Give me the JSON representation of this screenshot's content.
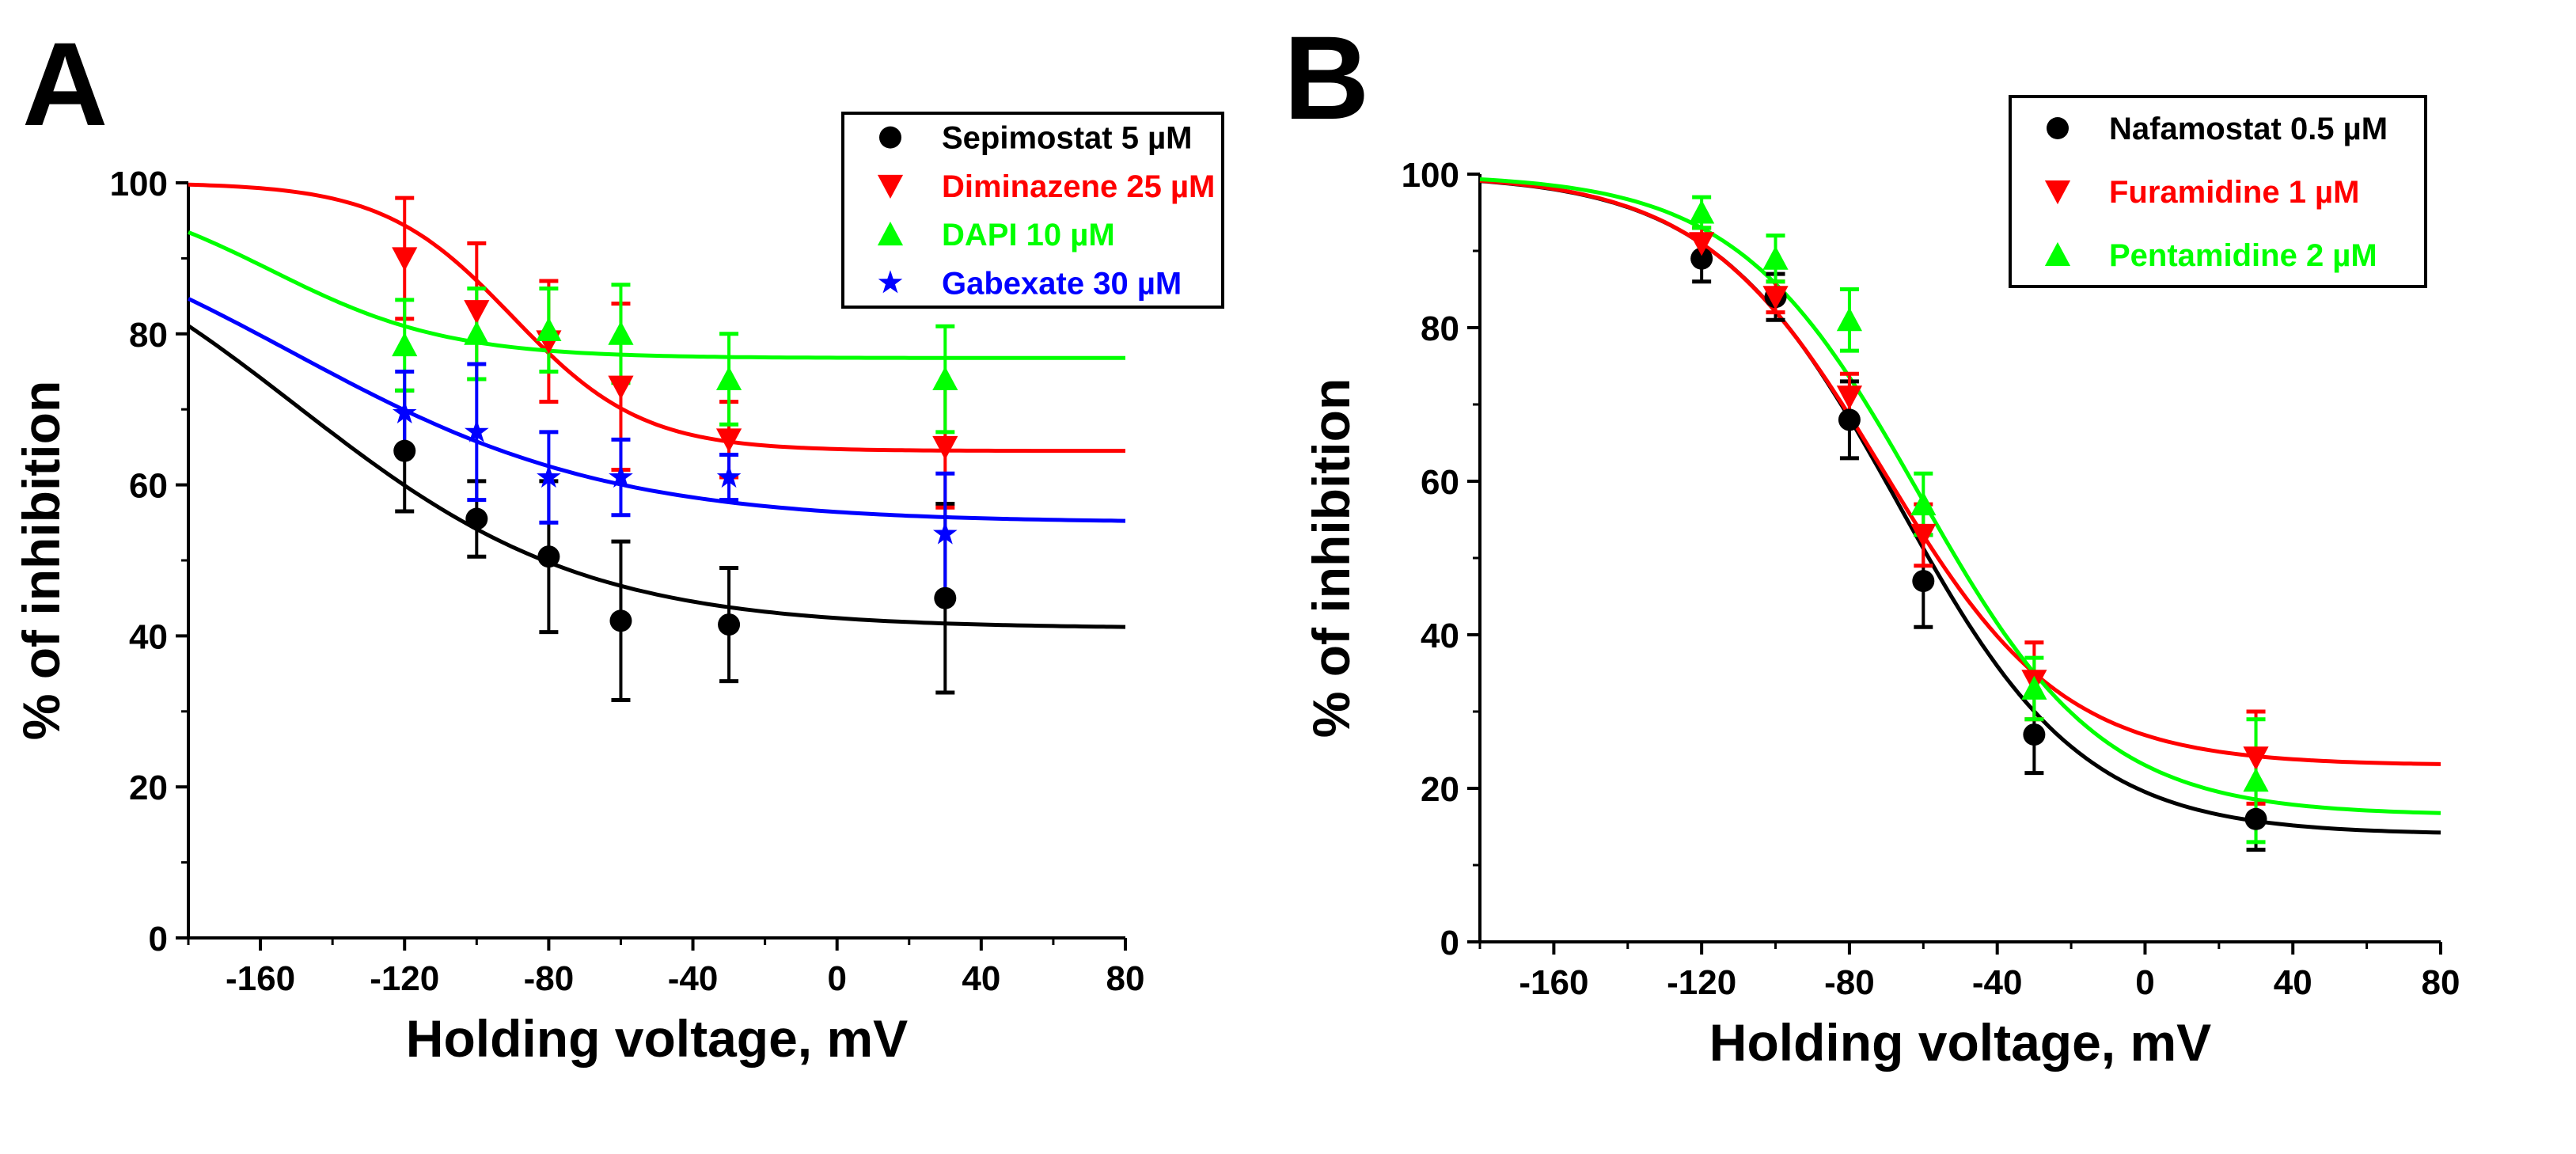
{
  "chart_data": [
    {
      "type": "scatter",
      "panel_label": "A",
      "xlabel": "Holding voltage, mV",
      "ylabel": "% of inhibition",
      "xlim": [
        -180,
        80
      ],
      "ylim": [
        0,
        100
      ],
      "xticks": [
        -160,
        -120,
        -80,
        -40,
        0,
        40,
        80
      ],
      "yticks": [
        0,
        20,
        40,
        60,
        80,
        100
      ],
      "grid": false,
      "legend_position": "top-right",
      "series": [
        {
          "name": "Sepimostat 5 µM",
          "color": "#000000",
          "marker": "circle",
          "x": [
            -120,
            -100,
            -80,
            -60,
            -30,
            30
          ],
          "y": [
            64.5,
            55.5,
            50.5,
            42,
            41.5,
            45
          ],
          "err": [
            8,
            5,
            10,
            10.5,
            7.5,
            12.5
          ],
          "fit": {
            "top": 100,
            "bottom": 41,
            "v_half": -150,
            "slope": 40
          }
        },
        {
          "name": "Diminazene 25 µM",
          "color": "#ff0000",
          "marker": "triangle-down",
          "x": [
            -120,
            -100,
            -80,
            -60,
            -30,
            30
          ],
          "y": [
            90,
            83,
            79,
            73,
            66,
            65
          ],
          "err": [
            8,
            9,
            8,
            11,
            5,
            8
          ],
          "fit": {
            "top": 100,
            "bottom": 64.5,
            "v_half": -90,
            "slope": 18
          }
        },
        {
          "name": "DAPI 10 µM",
          "color": "#00ff00",
          "marker": "triangle-up",
          "x": [
            -120,
            -100,
            -80,
            -60,
            -30,
            30
          ],
          "y": [
            78.5,
            80,
            80.5,
            80,
            74,
            74
          ],
          "err": [
            6,
            6,
            5.5,
            6.5,
            6,
            7
          ],
          "fit": {
            "top": 100,
            "bottom": 76.8,
            "v_half": -157,
            "slope": 24.6
          }
        },
        {
          "name": "Gabexate 30 µM",
          "color": "#0000ff",
          "marker": "star",
          "x": [
            -120,
            -100,
            -80,
            -60,
            -30,
            30
          ],
          "y": [
            69.5,
            67,
            61,
            61,
            61,
            53.5
          ],
          "err": [
            5.5,
            9,
            6,
            5,
            3,
            8
          ],
          "fit": {
            "top": 100,
            "bottom": 55,
            "v_half": -151,
            "slope": 44
          }
        }
      ]
    },
    {
      "type": "scatter",
      "panel_label": "B",
      "xlabel": "Holding voltage, mV",
      "ylabel": "% of inhibition",
      "xlim": [
        -180,
        80
      ],
      "ylim": [
        0,
        100
      ],
      "xticks": [
        -160,
        -120,
        -80,
        -40,
        0,
        40,
        80
      ],
      "yticks": [
        0,
        20,
        40,
        60,
        80,
        100
      ],
      "grid": false,
      "legend_position": "top-right",
      "series": [
        {
          "name": "Nafamostat 0.5 µM",
          "color": "#000000",
          "marker": "circle",
          "x": [
            -120,
            -100,
            -80,
            -60,
            -30,
            30
          ],
          "y": [
            89,
            84,
            68,
            47,
            27,
            16
          ],
          "err": [
            3,
            3,
            5,
            6,
            5,
            4
          ],
          "fit": {
            "top": 100,
            "bottom": 14,
            "v_half": -66.7,
            "slope": 24.9
          }
        },
        {
          "name": "Furamidine 1 µM",
          "color": "#ff0000",
          "marker": "triangle-down",
          "x": [
            -120,
            -100,
            -80,
            -60,
            -30,
            30
          ],
          "y": [
            91,
            84,
            71,
            53,
            34,
            24
          ],
          "err": [
            2,
            2,
            3,
            4,
            5,
            6
          ],
          "fit": {
            "top": 100,
            "bottom": 23,
            "v_half": -71,
            "slope": 24.3
          }
        },
        {
          "name": "Pentamidine 2 µM",
          "color": "#00ff00",
          "marker": "triangle-up",
          "x": [
            -120,
            -100,
            -80,
            -60,
            -30,
            30
          ],
          "y": [
            95,
            89,
            81,
            57,
            33,
            21
          ],
          "err": [
            2,
            3,
            4,
            4,
            4,
            8
          ],
          "fit": {
            "top": 100,
            "bottom": 16.5,
            "v_half": -61,
            "slope": 24.7
          }
        }
      ]
    }
  ]
}
